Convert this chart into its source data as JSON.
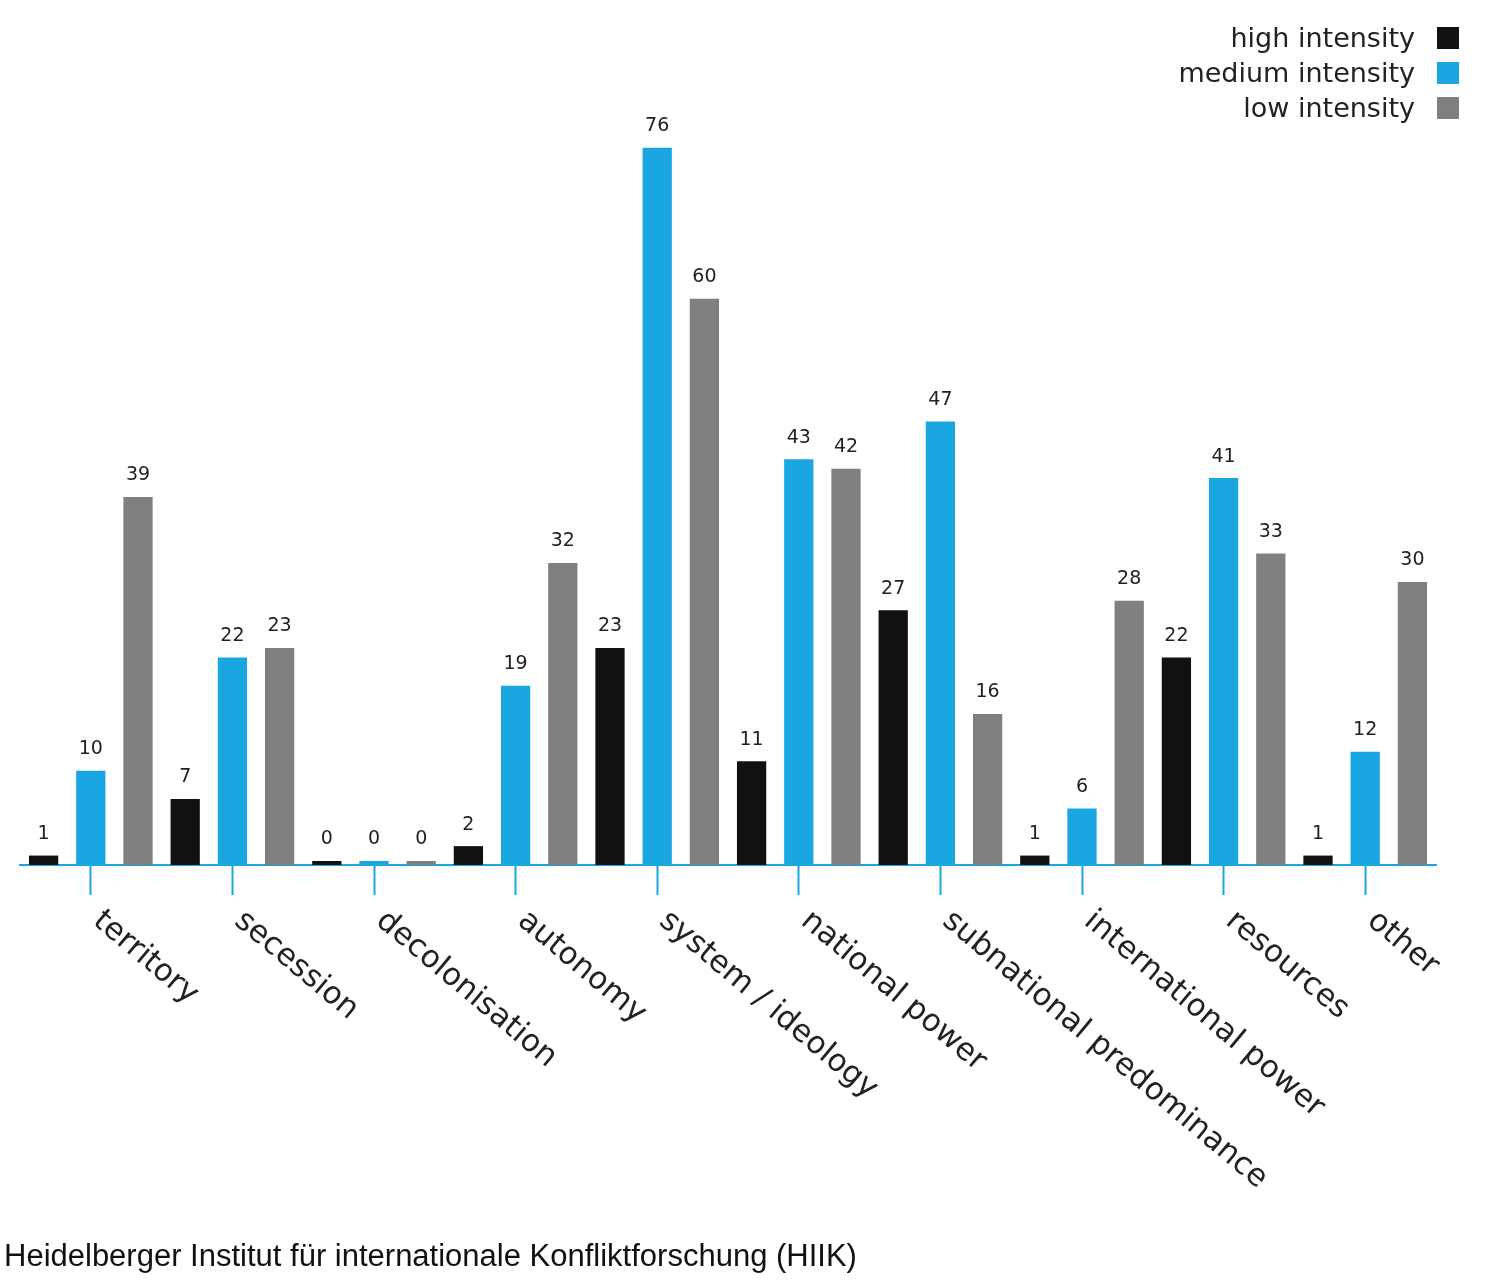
{
  "chart_data": {
    "type": "bar",
    "categories": [
      "territory",
      "secession",
      "decolonisation",
      "autonomy",
      "system / ideology",
      "national power",
      "subnational predominance",
      "international power",
      "resources",
      "other"
    ],
    "series": [
      {
        "name": "high intensity",
        "color": "#111111",
        "values": [
          1,
          7,
          0,
          2,
          23,
          11,
          27,
          1,
          22,
          1
        ]
      },
      {
        "name": "medium intensity",
        "color": "#1aa6e0",
        "values": [
          10,
          22,
          0,
          19,
          76,
          43,
          47,
          6,
          41,
          12
        ]
      },
      {
        "name": "low intensity",
        "color": "#808080",
        "values": [
          39,
          23,
          0,
          32,
          60,
          42,
          16,
          28,
          33,
          30
        ]
      }
    ],
    "data_labels": true,
    "grid": false,
    "legend": "top right",
    "annotations": [
      "Heidelberger Institut für internationale Konfliktforschung (HIIK)"
    ]
  }
}
